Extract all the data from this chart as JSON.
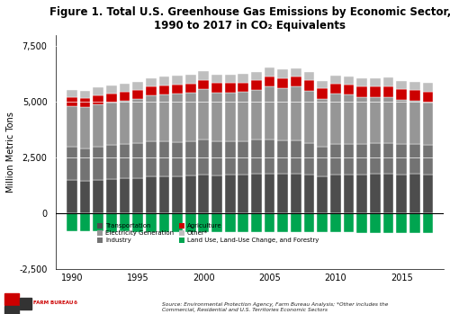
{
  "title": "Figure 1. Total U.S. Greenhouse Gas Emissions by Economic Sector,\n1990 to 2017 in CO₂ Equivalents",
  "ylabel": "Million Metric Tons",
  "years": [
    1990,
    1991,
    1992,
    1993,
    1994,
    1995,
    1996,
    1997,
    1998,
    1999,
    2000,
    2001,
    2002,
    2003,
    2004,
    2005,
    2006,
    2007,
    2008,
    2009,
    2010,
    2011,
    2012,
    2013,
    2014,
    2015,
    2016,
    2017
  ],
  "transportation": [
    1485,
    1476,
    1523,
    1557,
    1592,
    1603,
    1657,
    1671,
    1680,
    1699,
    1747,
    1716,
    1732,
    1747,
    1775,
    1798,
    1785,
    1794,
    1742,
    1670,
    1742,
    1745,
    1761,
    1781,
    1790,
    1762,
    1772,
    1763
  ],
  "electricity": [
    1820,
    1836,
    1878,
    1912,
    1951,
    1970,
    2074,
    2092,
    2157,
    2169,
    2262,
    2194,
    2188,
    2183,
    2226,
    2402,
    2337,
    2413,
    2358,
    2153,
    2256,
    2202,
    2093,
    2078,
    2059,
    1968,
    1920,
    1876
  ],
  "industry": [
    1494,
    1453,
    1485,
    1503,
    1522,
    1540,
    1562,
    1568,
    1534,
    1541,
    1560,
    1508,
    1508,
    1510,
    1532,
    1513,
    1501,
    1470,
    1415,
    1317,
    1358,
    1369,
    1367,
    1373,
    1380,
    1359,
    1340,
    1333
  ],
  "agriculture": [
    395,
    399,
    404,
    404,
    406,
    413,
    414,
    425,
    421,
    428,
    430,
    430,
    432,
    436,
    437,
    443,
    446,
    455,
    459,
    463,
    468,
    471,
    476,
    479,
    488,
    491,
    499,
    502
  ],
  "other": [
    355,
    348,
    352,
    355,
    356,
    357,
    366,
    370,
    374,
    379,
    382,
    380,
    381,
    383,
    384,
    386,
    384,
    383,
    370,
    345,
    358,
    359,
    362,
    366,
    372,
    372,
    372,
    373
  ],
  "lulucf": [
    -800,
    -807,
    -812,
    -817,
    -815,
    -817,
    -820,
    -826,
    -823,
    -829,
    -832,
    -836,
    -836,
    -840,
    -840,
    -843,
    -843,
    -845,
    -845,
    -848,
    -851,
    -852,
    -860,
    -862,
    -867,
    -869,
    -872,
    -874
  ],
  "colors": {
    "transportation": "#4d4d4d",
    "electricity": "#969696",
    "industry": "#737373",
    "agriculture": "#cc0000",
    "other": "#bfbfbf",
    "lulucf": "#00a550"
  },
  "ylim": [
    -2500,
    8000
  ],
  "yticks": [
    -2500,
    0,
    2500,
    5000,
    7500
  ],
  "source_text": "Source: Environmental Protection Agency, Farm Bureau Analysis; *Other includes the\nCommercial, Residential and U.S. Territories Economic Sectors",
  "background_color": "#ffffff",
  "plot_bg": "#ffffff"
}
